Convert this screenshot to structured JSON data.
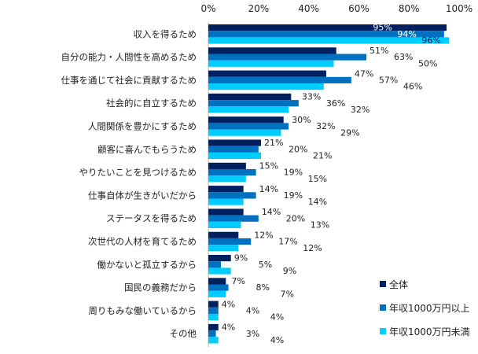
{
  "chart_data": {
    "type": "bar",
    "orientation": "horizontal",
    "title": "",
    "xlabel": "",
    "ylabel": "",
    "xlim": [
      0,
      100
    ],
    "x_ticks": [
      "0%",
      "20%",
      "40%",
      "60%",
      "80%",
      "100%"
    ],
    "grid": false,
    "legend_position": "bottom-right",
    "categories": [
      "収入を得るため",
      "自分の能力・人間性を高めるため",
      "仕事を通じて社会に貢献するため",
      "社会的に自立するため",
      "人間関係を豊かにするため",
      "顧客に喜んでもらうため",
      "やりたいことを見つけるため",
      "仕事自体が生きがいだから",
      "ステータスを得るため",
      "次世代の人材を育てるため",
      "働かないと孤立するから",
      "国民の義務だから",
      "周りもみな働いているから",
      "その他"
    ],
    "series": [
      {
        "name": "全体",
        "color": "#002060",
        "values": [
          95,
          51,
          47,
          33,
          30,
          21,
          15,
          14,
          14,
          12,
          9,
          7,
          4,
          4
        ]
      },
      {
        "name": "年収1000万円以上",
        "color": "#0070C0",
        "values": [
          94,
          63,
          57,
          36,
          32,
          20,
          19,
          19,
          20,
          17,
          5,
          8,
          4,
          3
        ]
      },
      {
        "name": "年収1000万円未満",
        "color": "#00CCFF",
        "values": [
          96,
          50,
          46,
          32,
          29,
          21,
          15,
          14,
          13,
          12,
          9,
          7,
          4,
          4
        ]
      }
    ],
    "value_suffix": "%"
  }
}
